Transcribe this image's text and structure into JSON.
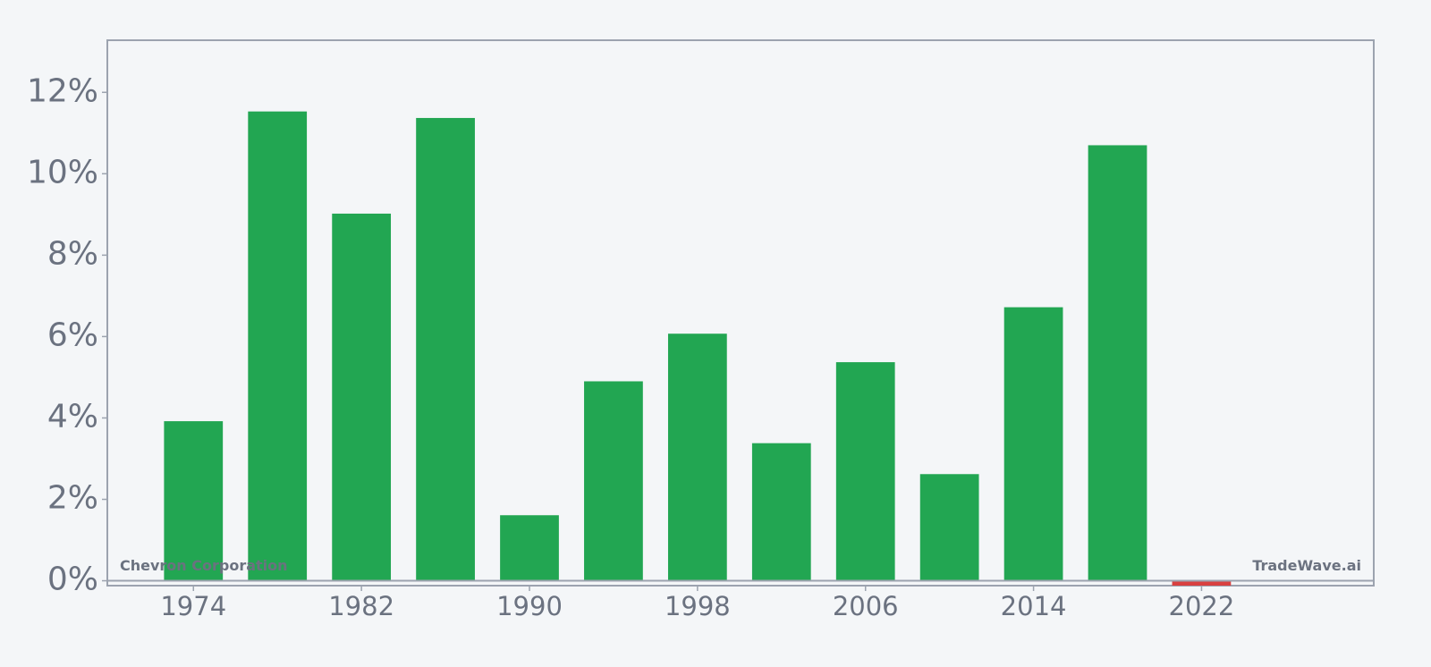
{
  "chart_data": {
    "type": "bar",
    "x": [
      1974,
      1978,
      1982,
      1986,
      1990,
      1994,
      1998,
      2002,
      2006,
      2010,
      2014,
      2018,
      2022
    ],
    "values": [
      3.92,
      11.53,
      9.02,
      11.37,
      1.61,
      4.9,
      6.07,
      3.38,
      5.37,
      2.62,
      6.72,
      10.7,
      -0.12
    ],
    "color": "#22a652",
    "negative_color": "#d94040",
    "xlim": [
      1969.9,
      2030.2
    ],
    "xticks": [
      1974,
      1982,
      1990,
      1998,
      2006,
      2014,
      2022
    ],
    "ylim": [
      -0.12,
      13.28
    ],
    "yticks": [
      {
        "value": 0,
        "label": "0%"
      },
      {
        "value": 2,
        "label": "2%"
      },
      {
        "value": 4,
        "label": "4%"
      },
      {
        "value": 6,
        "label": "6%"
      },
      {
        "value": 8,
        "label": "8%"
      },
      {
        "value": 10,
        "label": "10%"
      },
      {
        "value": 12,
        "label": "12%"
      }
    ],
    "annotations": [
      "Chevron Corporation",
      "TradeWave.ai"
    ]
  }
}
